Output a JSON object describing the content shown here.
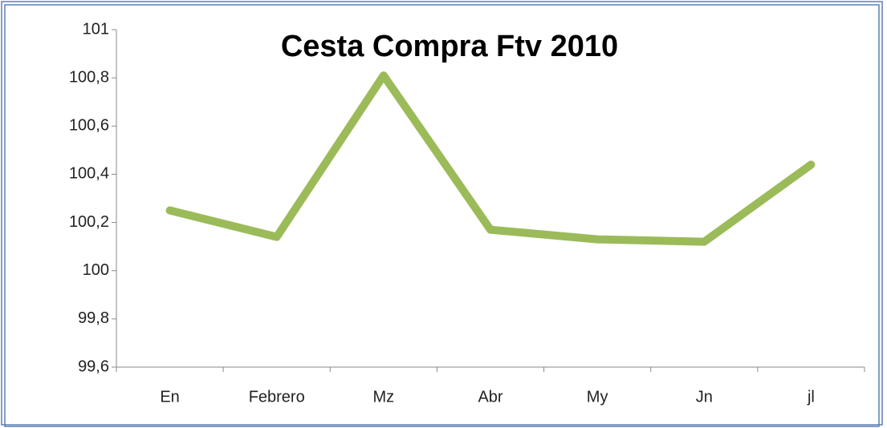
{
  "chart_data": {
    "type": "line",
    "title": "Cesta Compra Ftv 2010",
    "categories": [
      "En",
      "Febrero",
      "Mz",
      "Abr",
      "My",
      "Jn",
      "jl"
    ],
    "values": [
      100.25,
      100.14,
      100.81,
      100.17,
      100.13,
      100.12,
      100.44
    ],
    "color": "#9bbb59",
    "ylim": [
      99.6,
      101
    ],
    "yticks": [
      {
        "value": 99.6,
        "label": "99,6"
      },
      {
        "value": 99.8,
        "label": "99,8"
      },
      100,
      {
        "value": 100.2,
        "label": "100,2"
      },
      {
        "value": 100.4,
        "label": "100,4"
      },
      {
        "value": 100.6,
        "label": "100,6"
      },
      {
        "value": 100.8,
        "label": "100,8"
      },
      101
    ],
    "grid": false
  }
}
